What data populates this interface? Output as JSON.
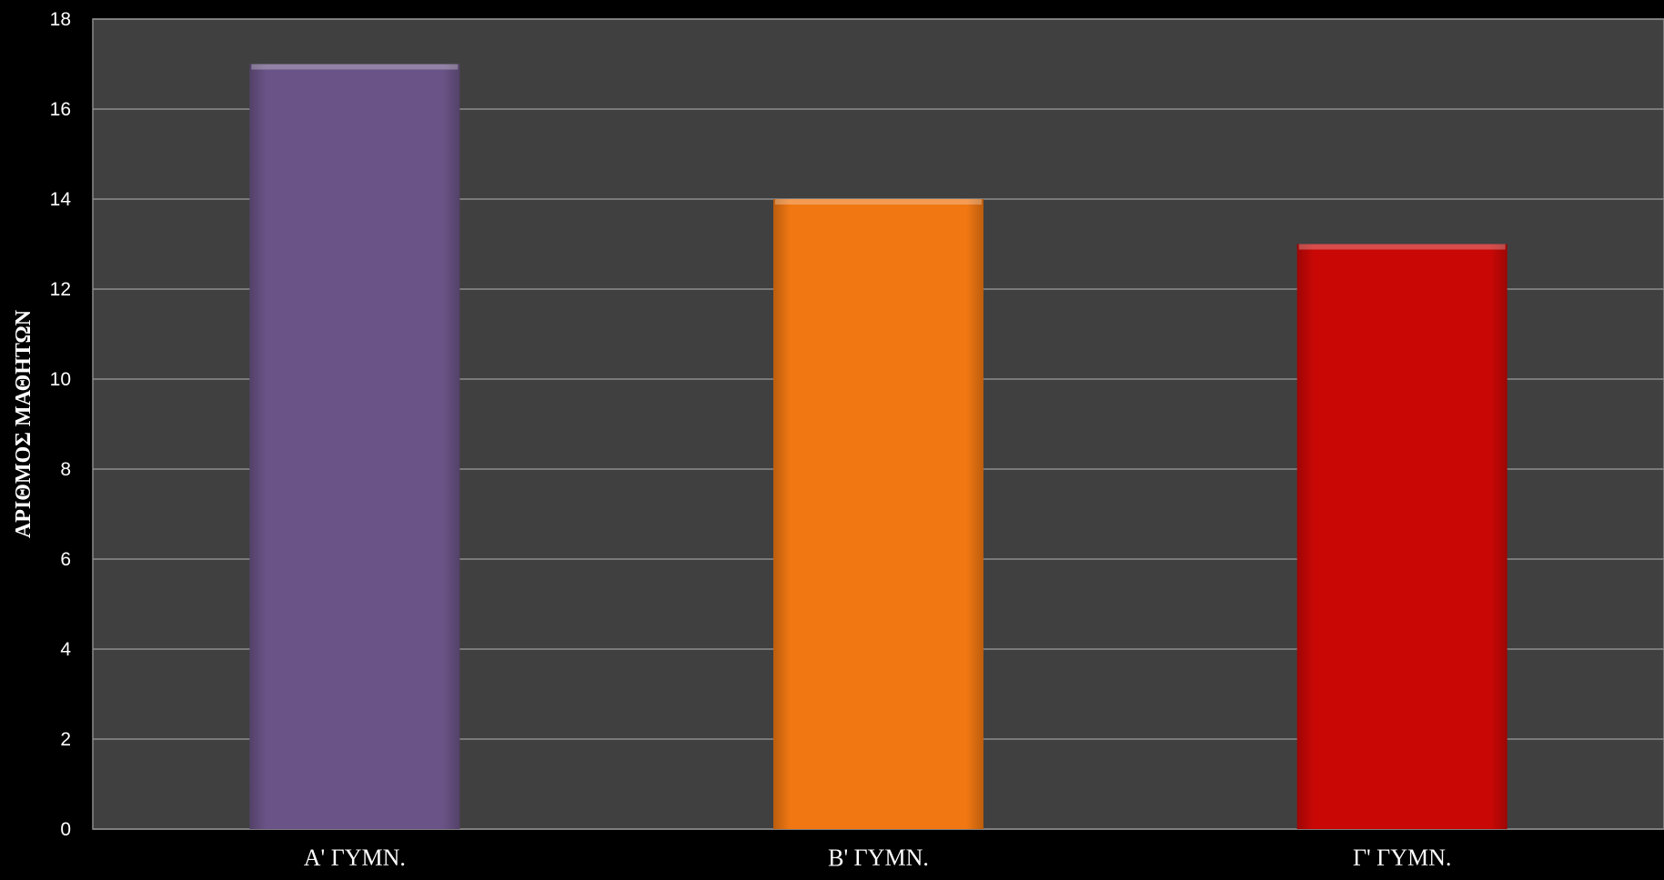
{
  "chart_data": {
    "type": "bar",
    "title": "",
    "xlabel": "",
    "ylabel": "ΑΡΙΘΜΟΣ ΜΑΘΗΤΩΝ",
    "categories": [
      "Α' ΓΥΜΝ.",
      "Β' ΓΥΜΝ.",
      "Γ' ΓΥΜΝ."
    ],
    "values": [
      17,
      14,
      13
    ],
    "bar_colors": [
      "#6a5386",
      "#f07712",
      "#c90806"
    ],
    "ylim": [
      0,
      18
    ],
    "yticks": [
      0,
      2,
      4,
      6,
      8,
      10,
      12,
      14,
      16,
      18
    ],
    "grid": true,
    "legend": "none",
    "colors": {
      "page_background": "#000000",
      "plot_background": "#404040",
      "gridline": "#8c8c8c",
      "text": "#ffffff"
    }
  }
}
